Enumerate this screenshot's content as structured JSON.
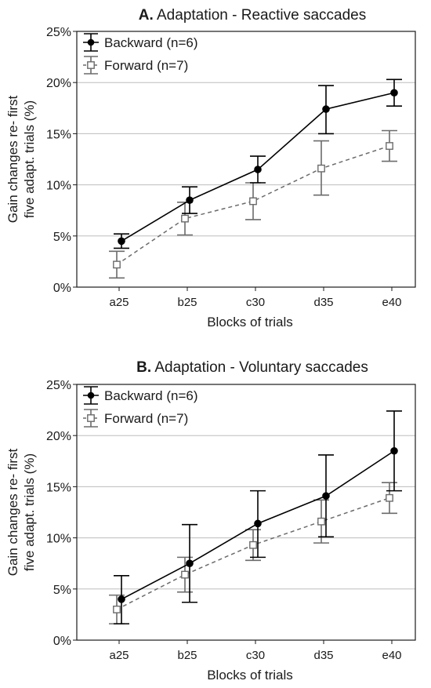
{
  "figure": {
    "panels": [
      {
        "title_prefix": "A.",
        "title_text": " Adaptation - Reactive saccades"
      },
      {
        "title_prefix": "B.",
        "title_text": " Adaptation - Voluntary saccades"
      }
    ]
  },
  "colors": {
    "backward": "#000000",
    "forward": "#6b6b6b",
    "grid": "#bdbdbd",
    "axis": "#1a1a1a"
  },
  "chart_data": [
    {
      "type": "line",
      "title": "A. Adaptation - Reactive saccades",
      "xlabel": "Blocks of trials",
      "ylabel": [
        "Gain changes re- first",
        "five adapt. trials (%)"
      ],
      "categories": [
        "a25",
        "b25",
        "c30",
        "d35",
        "e40"
      ],
      "ylim": [
        0,
        25
      ],
      "yticks": [
        0,
        5,
        10,
        15,
        20,
        25
      ],
      "ytick_labels": [
        "0%",
        "5%",
        "10%",
        "15%",
        "20%",
        "25%"
      ],
      "grid": "horizontal",
      "legend_position": "top-left",
      "series": [
        {
          "name": "Backward (n=6)",
          "marker": "filled-circle",
          "line": "solid",
          "values": [
            4.5,
            8.5,
            11.5,
            17.4,
            19.0
          ],
          "err_low": [
            3.8,
            7.2,
            10.2,
            15.0,
            17.7
          ],
          "err_high": [
            5.2,
            9.8,
            12.8,
            19.7,
            20.3
          ]
        },
        {
          "name": "Forward (n=7)",
          "marker": "open-square",
          "line": "dashed",
          "values": [
            2.2,
            6.7,
            8.4,
            11.6,
            13.8
          ],
          "err_low": [
            0.9,
            5.1,
            6.6,
            9.0,
            12.3
          ],
          "err_high": [
            3.5,
            8.3,
            10.2,
            14.3,
            15.3
          ]
        }
      ]
    },
    {
      "type": "line",
      "title": "B. Adaptation - Voluntary saccades",
      "xlabel": "Blocks of trials",
      "ylabel": [
        "Gain changes re- first",
        "five adapt. trials (%)"
      ],
      "categories": [
        "a25",
        "b25",
        "c30",
        "d35",
        "e40"
      ],
      "ylim": [
        0,
        25
      ],
      "yticks": [
        0,
        5,
        10,
        15,
        20,
        25
      ],
      "ytick_labels": [
        "0%",
        "5%",
        "10%",
        "15%",
        "20%",
        "25%"
      ],
      "grid": "horizontal",
      "legend_position": "top-left",
      "series": [
        {
          "name": "Backward (n=6)",
          "marker": "filled-circle",
          "line": "solid",
          "values": [
            4.0,
            7.5,
            11.4,
            14.1,
            18.5
          ],
          "err_low": [
            1.6,
            3.7,
            8.1,
            10.1,
            14.6
          ],
          "err_high": [
            6.3,
            11.3,
            14.6,
            18.1,
            22.4
          ]
        },
        {
          "name": "Forward (n=7)",
          "marker": "open-square",
          "line": "dashed",
          "values": [
            3.0,
            6.4,
            9.3,
            11.6,
            13.9
          ],
          "err_low": [
            1.6,
            4.7,
            7.8,
            9.5,
            12.4
          ],
          "err_high": [
            4.4,
            8.1,
            10.8,
            13.7,
            15.4
          ]
        }
      ]
    }
  ]
}
